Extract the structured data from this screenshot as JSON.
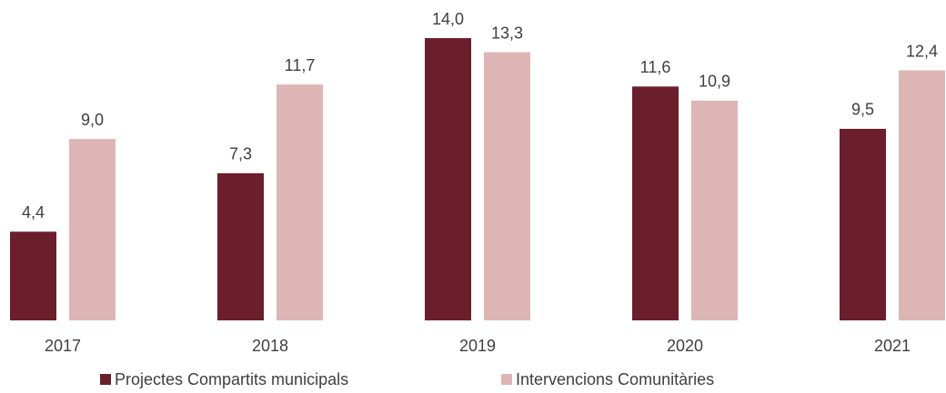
{
  "chart_data": {
    "type": "bar",
    "categories": [
      "2017",
      "2018",
      "2019",
      "2020",
      "2021"
    ],
    "series": [
      {
        "name": "Projectes Compartits municipals",
        "color": "#6b1e2b",
        "values": [
          4.4,
          7.3,
          14.0,
          11.6,
          9.5
        ],
        "value_labels": [
          "4,4",
          "7,3",
          "14,0",
          "11,6",
          "9,5"
        ]
      },
      {
        "name": "Intervencions Comunitàries",
        "color": "#deb5b5",
        "values": [
          9.0,
          11.7,
          13.3,
          10.9,
          12.4
        ],
        "value_labels": [
          "9,0",
          "11,7",
          "13,3",
          "10,9",
          "12,4"
        ]
      }
    ],
    "legend": "bottom"
  }
}
